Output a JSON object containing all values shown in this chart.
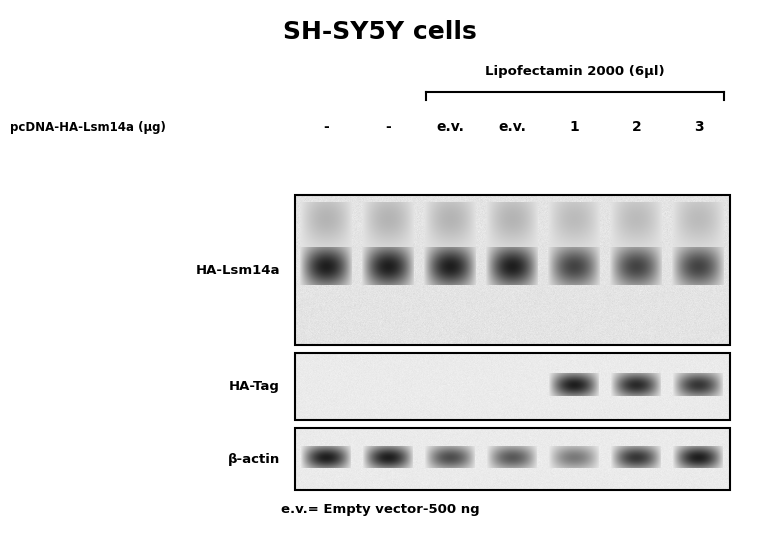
{
  "title": "SH-SY5Y cells",
  "title_fontsize": 18,
  "title_fontweight": "bold",
  "background_color": "#ffffff",
  "lipofectamin_label": "Lipofectamin 2000 (6μl)",
  "row_label": "pcDNA-HA-Lsm14a (μg)",
  "lane_labels": [
    "-",
    "-",
    "e.v.",
    "e.v.",
    "1",
    "2",
    "3"
  ],
  "blot_labels": [
    "HA-Lsm14a",
    "HA-Tag",
    "β-actin"
  ],
  "footer_note": "e.v.= Empty vector-500 ng",
  "n_lanes": 7,
  "blot_bg": 230,
  "band_dark": 30,
  "band_smear": 160
}
